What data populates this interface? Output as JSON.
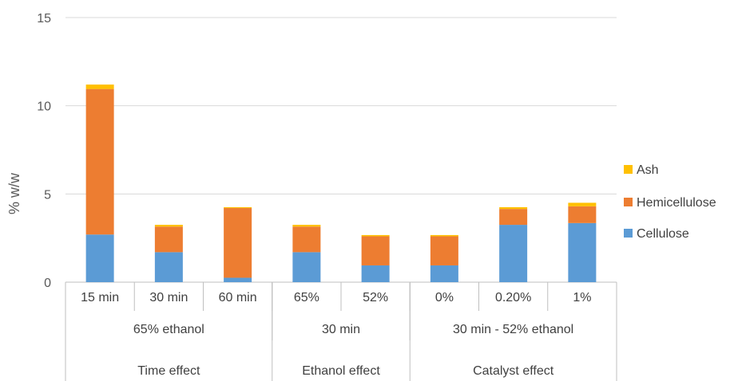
{
  "chart_data": {
    "type": "bar",
    "stacked": true,
    "title": "",
    "ylabel": "% w/w",
    "ylim": [
      0,
      15
    ],
    "yticks": [
      0,
      5,
      10,
      15
    ],
    "grid": true,
    "legend_position": "right",
    "categories": [
      "15 min",
      "30 min",
      "60 min",
      "65%",
      "52%",
      "0%",
      "0.20%",
      "1%"
    ],
    "category_groups_level2": [
      {
        "label": "65% ethanol",
        "span": 3
      },
      {
        "label": "30 min",
        "span": 2
      },
      {
        "label": "30 min - 52% ethanol",
        "span": 3
      }
    ],
    "category_groups_level3": [
      {
        "label": "Time effect",
        "span": 3
      },
      {
        "label": "Ethanol effect",
        "span": 2
      },
      {
        "label": "Catalyst effect",
        "span": 3
      }
    ],
    "series": [
      {
        "name": "Cellulose",
        "color": "#5B9BD5",
        "values": [
          2.7,
          1.7,
          0.25,
          1.7,
          0.95,
          0.95,
          3.25,
          3.35
        ]
      },
      {
        "name": "Hemicellulose",
        "color": "#ED7D31",
        "values": [
          8.25,
          1.45,
          3.95,
          1.45,
          1.65,
          1.65,
          0.9,
          0.95
        ]
      },
      {
        "name": "Ash",
        "color": "#FFC000",
        "values": [
          0.25,
          0.1,
          0.05,
          0.1,
          0.07,
          0.07,
          0.1,
          0.2
        ]
      }
    ],
    "legend_order": [
      "Ash",
      "Hemicellulose",
      "Cellulose"
    ]
  }
}
